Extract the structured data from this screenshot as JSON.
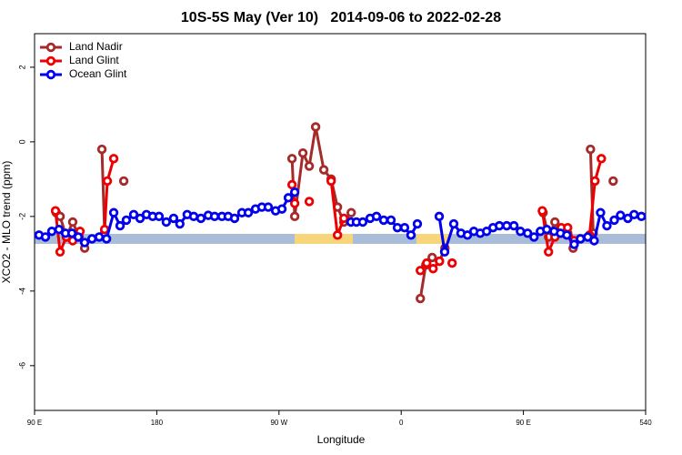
{
  "chart_data": {
    "type": "line",
    "title": "10S-5S May (Ver 10)   2014-09-06 to 2022-02-28",
    "x_label": "Longitude",
    "y_label": "XCO2 - MLO trend (ppm)",
    "xlim": [
      90,
      540
    ],
    "ylim": [
      -7.2,
      2.9
    ],
    "xticks": [
      {
        "value": 90,
        "label": "90 E"
      },
      180,
      {
        "value": 270,
        "label": "90 W"
      },
      {
        "value": 360,
        "label": "0"
      },
      {
        "value": 450,
        "label": "90 E"
      },
      540
    ],
    "yticks": [
      2,
      0,
      -2,
      -4,
      -6
    ],
    "legend": "top-left",
    "series": [
      {
        "name": "Land Nadir",
        "color": "#a52a2a",
        "x": [
          106,
          108.8,
          113.4,
          118.1,
          122.8,
          126.9,
          132,
          139.6,
          141.6,
          150,
          155.7,
          200,
          279.6,
          281.6,
          287.6,
          292.3,
          297,
          303,
          308.4,
          313.1,
          317.8,
          323.2,
          350,
          374.1,
          378.1,
          382.8,
          388.2,
          392.2,
          420,
          464.5,
          468.5,
          473.2,
          477.9,
          482.6,
          486.6,
          495,
          499.4,
          501.4,
          510,
          516.1
        ],
        "values": [
          -1.9,
          -2.0,
          -2.55,
          -2.15,
          -2.55,
          -2.85,
          null,
          -0.2,
          -2.45,
          null,
          -1.05,
          null,
          -0.45,
          -2.0,
          -0.3,
          -0.65,
          0.4,
          -0.75,
          -1.0,
          -1.75,
          -2.15,
          -1.9,
          null,
          -4.2,
          -3.3,
          -3.1,
          -3.2,
          -2.85,
          null,
          -1.9,
          -2.55,
          -2.15,
          -2.45,
          -2.45,
          -2.85,
          null,
          -0.2,
          -2.45,
          null,
          -1.05
        ]
      },
      {
        "name": "Land Glint",
        "color": "#ee0000",
        "x": [
          105.4,
          108.8,
          113.4,
          118.1,
          123.5,
          130,
          141.6,
          143.6,
          148.3,
          200,
          279.6,
          281.6,
          285,
          292.3,
          300,
          308.4,
          313.1,
          317.8,
          350,
          374.1,
          378.8,
          383.5,
          388.2,
          392,
          397.5,
          420,
          463.9,
          468.5,
          473.2,
          477.9,
          482.6,
          487.3,
          492,
          498.7,
          502.7,
          507.4
        ],
        "values": [
          -1.85,
          -2.95,
          -2.55,
          -2.65,
          -2.4,
          null,
          -2.35,
          -1.05,
          -0.45,
          null,
          -1.15,
          -1.65,
          null,
          -1.6,
          null,
          -1.05,
          -2.5,
          -2.05,
          null,
          -3.45,
          -3.25,
          -3.4,
          -3.2,
          null,
          -3.25,
          null,
          -1.85,
          -2.95,
          -2.55,
          -2.3,
          -2.3,
          -2.65,
          -2.6,
          -2.5,
          -1.05,
          -0.45
        ]
      },
      {
        "name": "Ocean Glint",
        "color": "#0000ee",
        "x": [
          93.3,
          98,
          102.7,
          108,
          112.8,
          117.5,
          122.2,
          126.9,
          132.3,
          137.6,
          143,
          148.3,
          153,
          157.6,
          163,
          167.7,
          172.4,
          177,
          181.7,
          187,
          192.4,
          197,
          202.4,
          207.2,
          212.5,
          217.9,
          222.6,
          228,
          232.6,
          237.3,
          242.7,
          247.4,
          252.7,
          257.4,
          262.1,
          267.5,
          272.2,
          276.9,
          281.6,
          300,
          323,
          327,
          331.7,
          337.1,
          341.8,
          347.1,
          352.5,
          357.2,
          362.5,
          367.2,
          371.9,
          380,
          388,
          392,
          398.7,
          404,
          408.8,
          413.5,
          418.2,
          422.9,
          427.6,
          432.3,
          437.7,
          443,
          447.8,
          453.1,
          457.8,
          462.5,
          467.2,
          472.6,
          477.3,
          482,
          487.4,
          492,
          497.4,
          502.1,
          506.8,
          511.5,
          516.9,
          521.5,
          526.9,
          531.5,
          536.9
        ],
        "values": [
          -2.5,
          -2.55,
          -2.4,
          -2.35,
          -2.45,
          -2.45,
          -2.55,
          -2.7,
          -2.6,
          -2.55,
          -2.6,
          -1.9,
          -2.25,
          -2.1,
          -1.95,
          -2.05,
          -1.95,
          -2.0,
          -2.0,
          -2.15,
          -2.05,
          -2.2,
          -1.95,
          -2.0,
          -2.05,
          -1.97,
          -2.0,
          -2.0,
          -2.0,
          -2.05,
          -1.9,
          -1.9,
          -1.8,
          -1.75,
          -1.75,
          -1.85,
          -1.8,
          -1.5,
          -1.35,
          null,
          -2.15,
          -2.15,
          -2.15,
          -2.05,
          -2.0,
          -2.1,
          -2.1,
          -2.3,
          -2.3,
          -2.5,
          -2.2,
          null,
          -2.0,
          -2.95,
          -2.2,
          -2.45,
          -2.5,
          -2.4,
          -2.45,
          -2.4,
          -2.3,
          -2.25,
          -2.25,
          -2.25,
          -2.4,
          -2.45,
          -2.55,
          -2.4,
          -2.35,
          -2.4,
          -2.45,
          -2.5,
          -2.75,
          -2.6,
          -2.55,
          -2.65,
          -1.9,
          -2.25,
          -2.1,
          -1.97,
          -2.05,
          -1.95,
          -2.0
        ]
      }
    ]
  }
}
